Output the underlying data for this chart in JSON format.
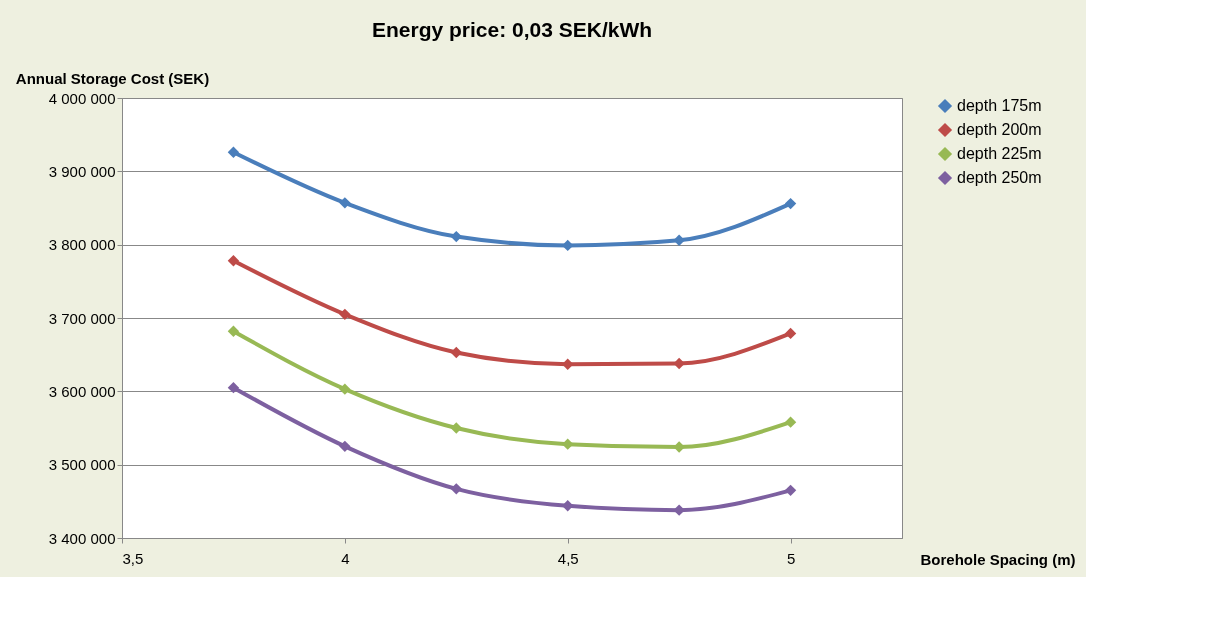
{
  "chart_data": {
    "type": "line",
    "title": "Energy price: 0,03 SEK/kWh",
    "xlabel": "Borehole Spacing (m)",
    "ylabel": "Annual Storage Cost (SEK)",
    "x": [
      3.75,
      4,
      4.25,
      4.5,
      4.75,
      5
    ],
    "series": [
      {
        "name": "depth 175m",
        "color": "#4a7ebb",
        "values": [
          3926000,
          3857000,
          3811000,
          3799000,
          3806000,
          3856000
        ]
      },
      {
        "name": "depth 200m",
        "color": "#be4b48",
        "values": [
          3778000,
          3705000,
          3653000,
          3637000,
          3638000,
          3679000
        ]
      },
      {
        "name": "depth 225m",
        "color": "#98b954",
        "values": [
          3682000,
          3603000,
          3550000,
          3528000,
          3524000,
          3558000
        ]
      },
      {
        "name": "depth 250m",
        "color": "#7d60a0",
        "values": [
          3605000,
          3525000,
          3467000,
          3444000,
          3438000,
          3465000
        ]
      }
    ],
    "xlim": [
      3.5,
      5.25
    ],
    "xticks": [
      {
        "value": 3.5,
        "label": "3,5"
      },
      4,
      {
        "value": 4.5,
        "label": "4,5"
      },
      5
    ],
    "ylim": [
      3400000,
      4000000
    ],
    "yticks": [
      {
        "value": 3400000,
        "label": "3 400 000"
      },
      {
        "value": 3500000,
        "label": "3 500 000"
      },
      {
        "value": 3600000,
        "label": "3 600 000"
      },
      {
        "value": 3700000,
        "label": "3 700 000"
      },
      {
        "value": 3800000,
        "label": "3 800 000"
      },
      {
        "value": 3900000,
        "label": "3 900 000"
      },
      {
        "value": 4000000,
        "label": "4 000 000"
      }
    ],
    "grid": "y",
    "legend": "right",
    "marker": "diamond",
    "line_style": "solid"
  }
}
